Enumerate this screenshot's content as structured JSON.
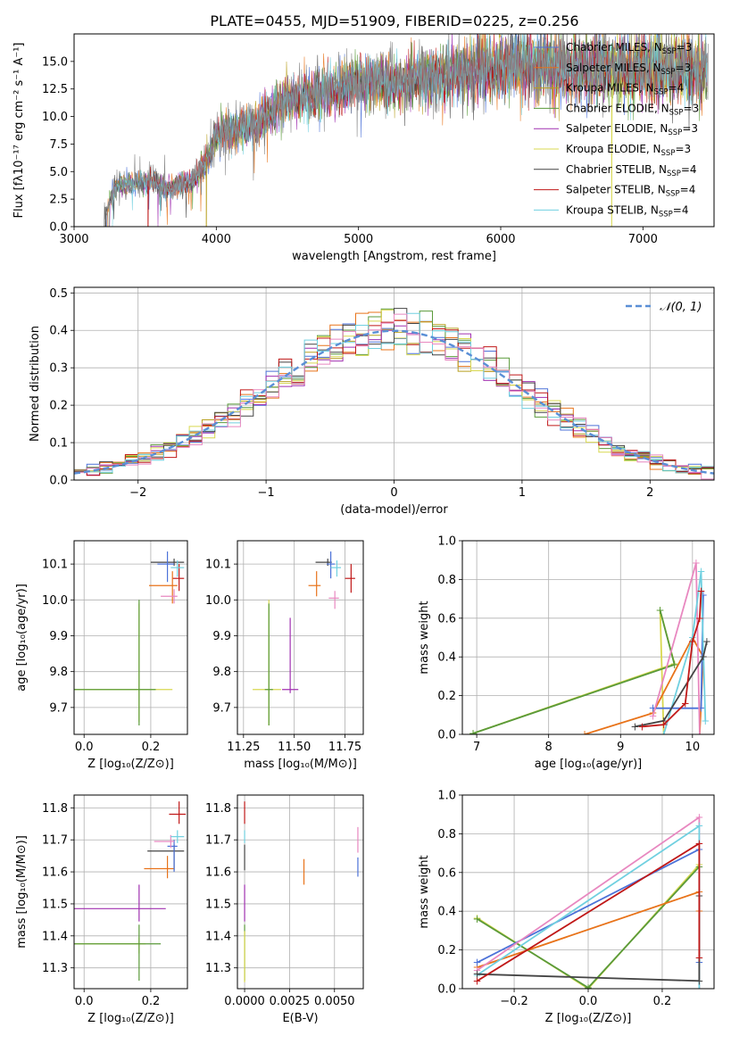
{
  "figure": {
    "title": "PLATE=0455, MJD=51909, FIBERID=0225, z=0.256"
  },
  "colors": {
    "Chabrier MILES": "#4c72d8",
    "Salpeter MILES": "#e8731a",
    "Kroupa MILES": "#b8a020",
    "Chabrier ELODIE": "#5a9a3a",
    "Salpeter ELODIE": "#a030b0",
    "Kroupa ELODIE": "#d8d850",
    "Chabrier STELIB": "#444444",
    "Salpeter STELIB": "#c01818",
    "Kroupa STELIB": "#70d0e0",
    "pink": "#e888c0",
    "gaussian": "#5a8fd6"
  },
  "chart_data": [
    {
      "id": "spectrum",
      "type": "line",
      "xlabel": "wavelength [Angstrom, rest frame]",
      "ylabel": "Flux [fλ10⁻¹⁷ erg cm⁻² s⁻¹ A⁻¹]",
      "xlim": [
        3000,
        7500
      ],
      "ylim": [
        0,
        17.5
      ],
      "xticks": [
        3000,
        4000,
        5000,
        6000,
        7000
      ],
      "yticks": [
        0.0,
        2.5,
        5.0,
        7.5,
        10.0,
        12.5,
        15.0
      ],
      "xtick_labels": [
        "3000",
        "4000",
        "5000",
        "6000",
        "7000"
      ],
      "ytick_labels": [
        "0.0",
        "2.5",
        "5.0",
        "7.5",
        "10.0",
        "12.5",
        "15.0"
      ],
      "legend_location": "right",
      "legend": [
        {
          "label": "Chabrier MILES, N",
          "sub": "SSP",
          "tail": "=3",
          "key": "Chabrier MILES"
        },
        {
          "label": "Salpeter MILES, N",
          "sub": "SSP",
          "tail": "=3",
          "key": "Salpeter MILES"
        },
        {
          "label": "Kroupa MILES, N",
          "sub": "SSP",
          "tail": "=4",
          "key": "Kroupa MILES"
        },
        {
          "label": "Chabrier ELODIE, N",
          "sub": "SSP",
          "tail": "=3",
          "key": "Chabrier ELODIE"
        },
        {
          "label": "Salpeter ELODIE, N",
          "sub": "SSP",
          "tail": "=3",
          "key": "Salpeter ELODIE"
        },
        {
          "label": "Kroupa ELODIE, N",
          "sub": "SSP",
          "tail": "=3",
          "key": "Kroupa ELODIE"
        },
        {
          "label": "Chabrier STELIB, N",
          "sub": "SSP",
          "tail": "=4",
          "key": "Chabrier STELIB"
        },
        {
          "label": "Salpeter STELIB, N",
          "sub": "SSP",
          "tail": "=4",
          "key": "Salpeter STELIB"
        },
        {
          "label": "Kroupa STELIB, N",
          "sub": "SSP",
          "tail": "=4",
          "key": "Kroupa STELIB"
        }
      ],
      "envelope": {
        "wavelength": [
          3200,
          3280,
          3400,
          3550,
          3650,
          3750,
          3850,
          3950,
          4000,
          4200,
          4300,
          4500,
          4700,
          4900,
          5100,
          5300,
          5500,
          5700,
          5900,
          6100,
          6300,
          6500,
          6700,
          6900,
          7100,
          7300
        ],
        "flux": [
          0.0,
          3.6,
          3.9,
          4.2,
          3.3,
          3.9,
          4.3,
          6.3,
          8.4,
          9.0,
          9.4,
          11.5,
          12.0,
          12.7,
          13.3,
          13.3,
          13.6,
          14.0,
          14.3,
          14.8,
          14.7,
          14.4,
          14.5,
          14.3,
          14.5,
          14.2
        ]
      },
      "model_starts": [
        {
          "key": "Chabrier STELIB",
          "x": 3220
        },
        {
          "key": "Salpeter STELIB",
          "x": 3520
        },
        {
          "key": "Kroupa MILES",
          "x": 3930
        },
        {
          "key": "Kroupa ELODIE",
          "x": 6780
        }
      ]
    },
    {
      "id": "residuals",
      "type": "histogram",
      "xlabel": "(data-model)/error",
      "ylabel": "Normed distribution",
      "xlim": [
        -2.5,
        2.5
      ],
      "ylim": [
        0,
        0.515
      ],
      "xticks": [
        -2,
        -1,
        0,
        1,
        2
      ],
      "yticks": [
        0.0,
        0.1,
        0.2,
        0.3,
        0.4,
        0.5
      ],
      "xtick_labels": [
        "−2",
        "−1",
        "0",
        "1",
        "2"
      ],
      "ytick_labels": [
        "0.0",
        "0.1",
        "0.2",
        "0.3",
        "0.4",
        "0.5"
      ],
      "grid": true,
      "bin_width": 0.1,
      "legend_location": "upper right",
      "legend_label": "𝒩(0, 1)",
      "gaussian": {
        "mean": 0,
        "sigma": 1,
        "name": "𝒩(0, 1)"
      }
    },
    {
      "id": "age-vs-Z",
      "type": "errorbar",
      "xlabel": "Z [log₁₀(Z/Z⊙)]",
      "ylabel": "age  [log₁₀(age/yr)]",
      "xlim": [
        -0.03,
        0.31
      ],
      "ylim": [
        9.625,
        10.165
      ],
      "xticks": [
        0.0,
        0.2
      ],
      "yticks": [
        9.7,
        9.8,
        9.9,
        10.0,
        10.1
      ],
      "xtick_labels": [
        "0.0",
        "0.2"
      ],
      "ytick_labels": [
        "9.7",
        "9.8",
        "9.9",
        "10.0",
        "10.1"
      ],
      "grid": true,
      "points": [
        {
          "key": "Kroupa ELODIE",
          "x": 0.165,
          "xerr": [
            0.23,
            0.1
          ],
          "y": 9.75,
          "yerr": [
            0.09,
            0.24
          ]
        },
        {
          "key": "Chabrier ELODIE",
          "x": 0.165,
          "xerr": [
            0.2,
            0.05
          ],
          "y": 9.75,
          "yerr": [
            0.1,
            0.25
          ]
        },
        {
          "key": "Chabrier STELIB",
          "x": 0.27,
          "xerr": [
            0.07,
            0.03
          ],
          "y": 10.105,
          "yerr": [
            0.01,
            0.01
          ]
        },
        {
          "key": "Chabrier MILES",
          "x": 0.25,
          "xerr": [
            0.03,
            0.02
          ],
          "y": 10.1,
          "yerr": [
            0.05,
            0.035
          ]
        },
        {
          "key": "Salpeter STELIB",
          "x": 0.285,
          "xerr": [
            0.02,
            0.015
          ],
          "y": 10.06,
          "yerr": [
            0.035,
            0.04
          ]
        },
        {
          "key": "Salpeter MILES",
          "x": 0.265,
          "xerr": [
            0.07,
            0.015
          ],
          "y": 10.04,
          "yerr": [
            0.05,
            0.04
          ]
        },
        {
          "key": "pink",
          "x": 0.27,
          "xerr": [
            0.04,
            0.01
          ],
          "y": 10.01,
          "yerr": [
            0.02,
            0.02
          ]
        },
        {
          "key": "Kroupa STELIB",
          "x": 0.28,
          "xerr": [
            0.02,
            0.02
          ],
          "y": 10.09,
          "yerr": [
            0.025,
            0.02
          ]
        }
      ]
    },
    {
      "id": "age-vs-mass",
      "type": "errorbar",
      "xlabel": "mass [log₁₀(M/M⊙)]",
      "ylabel": "",
      "xlim": [
        11.22,
        11.84
      ],
      "ylim": [
        9.625,
        10.165
      ],
      "xticks": [
        11.25,
        11.5,
        11.75
      ],
      "yticks": [
        9.7,
        9.8,
        9.9,
        10.0,
        10.1
      ],
      "xtick_labels": [
        "11.25",
        "11.50",
        "11.75"
      ],
      "ytick_labels": [
        "9.7",
        "9.8",
        "9.9",
        "10.0",
        "10.1"
      ],
      "grid": true,
      "points": [
        {
          "key": "Kroupa ELODIE",
          "x": 11.375,
          "xerr": [
            0.08,
            0.06
          ],
          "y": 9.75,
          "yerr": [
            0.1,
            0.25
          ]
        },
        {
          "key": "Chabrier ELODIE",
          "x": 11.375,
          "xerr": [
            0.02,
            0.02
          ],
          "y": 9.75,
          "yerr": [
            0.1,
            0.24
          ]
        },
        {
          "key": "Salpeter ELODIE",
          "x": 11.48,
          "xerr": [
            0.04,
            0.04
          ],
          "y": 9.75,
          "yerr": [
            0.01,
            0.2
          ]
        },
        {
          "key": "Chabrier STELIB",
          "x": 11.665,
          "xerr": [
            0.06,
            0.02
          ],
          "y": 10.105,
          "yerr": [
            0.01,
            0.01
          ]
        },
        {
          "key": "Chabrier MILES",
          "x": 11.68,
          "xerr": [
            0.02,
            0.02
          ],
          "y": 10.1,
          "yerr": [
            0.04,
            0.035
          ]
        },
        {
          "key": "Salpeter STELIB",
          "x": 11.78,
          "xerr": [
            0.03,
            0.02
          ],
          "y": 10.06,
          "yerr": [
            0.04,
            0.04
          ]
        },
        {
          "key": "Salpeter MILES",
          "x": 11.61,
          "xerr": [
            0.04,
            0.02
          ],
          "y": 10.04,
          "yerr": [
            0.03,
            0.04
          ]
        },
        {
          "key": "pink",
          "x": 11.7,
          "xerr": [
            0.03,
            0.02
          ],
          "y": 10.005,
          "yerr": [
            0.03,
            0.02
          ]
        },
        {
          "key": "Kroupa STELIB",
          "x": 11.71,
          "xerr": [
            0.03,
            0.02
          ],
          "y": 10.09,
          "yerr": [
            0.025,
            0.02
          ]
        }
      ]
    },
    {
      "id": "massweight-vs-age",
      "type": "line",
      "xlabel": "age  [log₁₀(age/yr)]",
      "ylabel": "mass weight",
      "xlim": [
        6.8,
        10.3
      ],
      "ylim": [
        0,
        1.0
      ],
      "xticks": [
        7,
        8,
        9,
        10
      ],
      "yticks": [
        0.0,
        0.2,
        0.4,
        0.6,
        0.8,
        1.0
      ],
      "xtick_labels": [
        "7",
        "8",
        "9",
        "10"
      ],
      "ytick_labels": [
        "0.0",
        "0.2",
        "0.4",
        "0.6",
        "0.8",
        "1.0"
      ],
      "grid": true,
      "series": [
        {
          "key": "Kroupa ELODIE",
          "x": [
            6.95,
            9.75,
            9.55,
            9.6
          ],
          "y": [
            0.005,
            0.365,
            0.64,
            0.0
          ]
        },
        {
          "key": "Chabrier ELODIE",
          "x": [
            6.95,
            9.75,
            9.55
          ],
          "y": [
            0.005,
            0.36,
            0.64
          ]
        },
        {
          "key": "Salpeter MILES",
          "x": [
            8.5,
            9.45,
            10.0,
            10.15,
            10.1
          ],
          "y": [
            0.0,
            0.11,
            0.5,
            0.4,
            0.0
          ]
        },
        {
          "key": "Chabrier MILES",
          "x": [
            9.45,
            10.12,
            10.15
          ],
          "y": [
            0.135,
            0.135,
            0.72
          ]
        },
        {
          "key": "pink",
          "x": [
            9.45,
            10.05,
            10.1
          ],
          "y": [
            0.095,
            0.885,
            0.0
          ]
        },
        {
          "key": "Kroupa STELIB",
          "x": [
            9.6,
            10.0,
            10.12,
            10.18
          ],
          "y": [
            0.0,
            0.5,
            0.84,
            0.07
          ]
        },
        {
          "key": "Chabrier STELIB",
          "x": [
            9.2,
            9.6,
            10.15,
            10.2
          ],
          "y": [
            0.04,
            0.07,
            0.4,
            0.48
          ]
        },
        {
          "key": "Salpeter STELIB",
          "x": [
            9.3,
            9.6,
            9.9,
            10.0,
            10.1,
            10.12
          ],
          "y": [
            0.04,
            0.05,
            0.16,
            0.48,
            0.6,
            0.74
          ]
        }
      ]
    },
    {
      "id": "mass-vs-Z",
      "type": "errorbar",
      "xlabel": "Z [log₁₀(Z/Z⊙)]",
      "ylabel": "mass [log₁₀(M/M⊙)]",
      "xlim": [
        -0.03,
        0.31
      ],
      "ylim": [
        11.235,
        11.84
      ],
      "xticks": [
        0.0,
        0.2
      ],
      "yticks": [
        11.3,
        11.4,
        11.5,
        11.6,
        11.7,
        11.8
      ],
      "xtick_labels": [
        "0.0",
        "0.2"
      ],
      "ytick_labels": [
        "11.3",
        "11.4",
        "11.5",
        "11.6",
        "11.7",
        "11.8"
      ],
      "grid": true,
      "points": [
        {
          "key": "Kroupa ELODIE",
          "x": 0.165,
          "xerr": [
            0.23,
            0.02
          ],
          "y": 11.375,
          "yerr": [
            0.03,
            0.02
          ]
        },
        {
          "key": "Chabrier ELODIE",
          "x": 0.165,
          "xerr": [
            0.2,
            0.065
          ],
          "y": 11.375,
          "yerr": [
            0.115,
            0.06
          ]
        },
        {
          "key": "Salpeter ELODIE",
          "x": 0.165,
          "xerr": [
            0.24,
            0.08
          ],
          "y": 11.485,
          "yerr": [
            0.04,
            0.075
          ]
        },
        {
          "key": "Chabrier STELIB",
          "x": 0.27,
          "xerr": [
            0.08,
            0.03
          ],
          "y": 11.665,
          "yerr": [
            0.06,
            0.02
          ]
        },
        {
          "key": "Salpeter STELIB",
          "x": 0.285,
          "xerr": [
            0.03,
            0.02
          ],
          "y": 11.78,
          "yerr": [
            0.03,
            0.04
          ]
        },
        {
          "key": "Salpeter MILES",
          "x": 0.25,
          "xerr": [
            0.07,
            0.02
          ],
          "y": 11.61,
          "yerr": [
            0.03,
            0.04
          ]
        },
        {
          "key": "Chabrier MILES",
          "x": 0.27,
          "xerr": [
            0.02,
            0.01
          ],
          "y": 11.68,
          "yerr": [
            0.08,
            0.02
          ]
        },
        {
          "key": "pink",
          "x": 0.26,
          "xerr": [
            0.05,
            0.01
          ],
          "y": 11.695,
          "yerr": [
            0.02,
            0.02
          ]
        },
        {
          "key": "Kroupa STELIB",
          "x": 0.28,
          "xerr": [
            0.02,
            0.02
          ],
          "y": 11.71,
          "yerr": [
            0.02,
            0.02
          ]
        }
      ]
    },
    {
      "id": "mass-vs-EBV",
      "type": "errorbar",
      "xlabel": "E(B-V)",
      "ylabel": "",
      "xlim": [
        -0.0004,
        0.0066
      ],
      "ylim": [
        11.235,
        11.84
      ],
      "xticks": [
        0.0,
        0.0025,
        0.005
      ],
      "yticks": [
        11.3,
        11.4,
        11.5,
        11.6,
        11.7,
        11.8
      ],
      "xtick_labels": [
        "0.0000",
        "0.0025",
        "0.0050"
      ],
      "ytick_labels": [
        "11.3",
        "11.4",
        "11.5",
        "11.6",
        "11.7",
        "11.8"
      ],
      "grid": true,
      "points": [
        {
          "key": "Chabrier ELODIE",
          "x": 0.0,
          "y": 11.375,
          "yerr": [
            0.115,
            0.06
          ]
        },
        {
          "key": "Kroupa ELODIE",
          "x": 0.0,
          "y": 11.375,
          "yerr": [
            0.12,
            0.04
          ]
        },
        {
          "key": "Salpeter ELODIE",
          "x": 0.0,
          "y": 11.485,
          "yerr": [
            0.04,
            0.075
          ]
        },
        {
          "key": "Chabrier STELIB",
          "x": 0.0,
          "y": 11.665,
          "yerr": [
            0.06,
            0.02
          ]
        },
        {
          "key": "Salpeter STELIB",
          "x": 0.0,
          "y": 11.78,
          "yerr": [
            0.03,
            0.04
          ]
        },
        {
          "key": "Kroupa STELIB",
          "x": 0.0,
          "y": 11.71,
          "yerr": [
            0.02,
            0.02
          ]
        },
        {
          "key": "Salpeter MILES",
          "x": 0.0033,
          "y": 11.6,
          "yerr": [
            0.04,
            0.04
          ]
        },
        {
          "key": "Chabrier MILES",
          "x": 0.0063,
          "y": 11.625,
          "yerr": [
            0.04,
            0.02
          ]
        },
        {
          "key": "pink",
          "x": 0.0063,
          "y": 11.7,
          "yerr": [
            0.04,
            0.04
          ]
        }
      ]
    },
    {
      "id": "massweight-vs-Z",
      "type": "line",
      "xlabel": "Z [log₁₀(Z/Z⊙)]",
      "ylabel": "mass weight",
      "xlim": [
        -0.34,
        0.34
      ],
      "ylim": [
        0,
        1.0
      ],
      "xticks": [
        -0.2,
        0.0,
        0.2
      ],
      "yticks": [
        0.0,
        0.2,
        0.4,
        0.6,
        0.8,
        1.0
      ],
      "xtick_labels": [
        "−0.2",
        "0.0",
        "0.2"
      ],
      "ytick_labels": [
        "0.0",
        "0.2",
        "0.4",
        "0.6",
        "0.8",
        "1.0"
      ],
      "grid": true,
      "series": [
        {
          "key": "Kroupa ELODIE",
          "x": [
            -0.3,
            0.0,
            0.3,
            0.3
          ],
          "y": [
            0.365,
            0.0,
            0.64,
            0.0
          ]
        },
        {
          "key": "Chabrier ELODIE",
          "x": [
            -0.3,
            0.0,
            0.3
          ],
          "y": [
            0.36,
            0.005,
            0.63
          ]
        },
        {
          "key": "Salpeter MILES",
          "x": [
            -0.3,
            0.3,
            0.3
          ],
          "y": [
            0.11,
            0.5,
            0.4
          ]
        },
        {
          "key": "Chabrier MILES",
          "x": [
            -0.3,
            0.3,
            0.3
          ],
          "y": [
            0.135,
            0.72,
            0.135
          ]
        },
        {
          "key": "pink",
          "x": [
            -0.3,
            0.3,
            0.3
          ],
          "y": [
            0.095,
            0.885,
            0.0
          ]
        },
        {
          "key": "Kroupa STELIB",
          "x": [
            -0.3,
            0.3,
            0.3
          ],
          "y": [
            0.07,
            0.84,
            0.0
          ]
        },
        {
          "key": "Chabrier STELIB",
          "x": [
            -0.3,
            0.3,
            0.3
          ],
          "y": [
            0.075,
            0.04,
            0.48
          ]
        },
        {
          "key": "Salpeter STELIB",
          "x": [
            -0.3,
            0.3,
            0.3
          ],
          "y": [
            0.04,
            0.75,
            0.16
          ]
        }
      ]
    }
  ]
}
